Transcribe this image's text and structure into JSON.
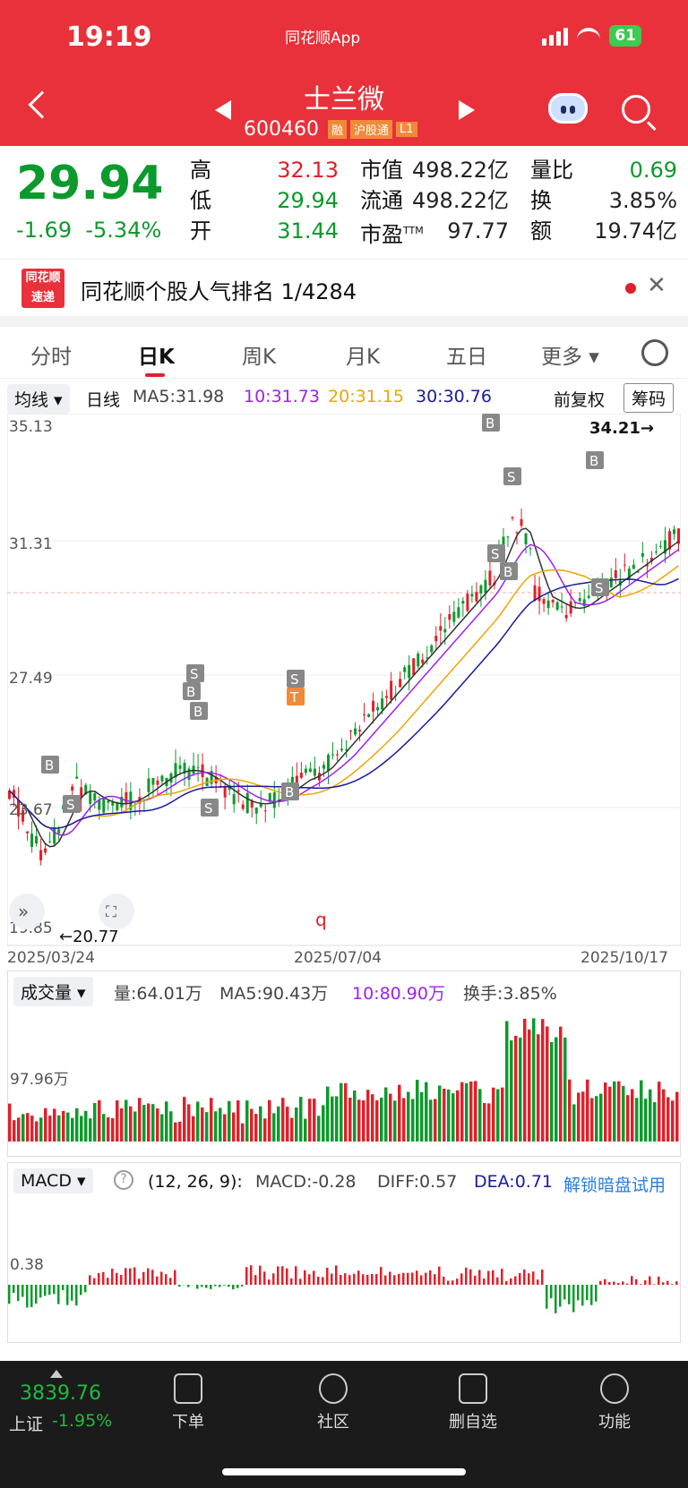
{
  "status": {
    "time": "19:19",
    "app": "同花顺App",
    "battery": "61"
  },
  "header": {
    "stock_name": "士兰微",
    "code": "600460",
    "tags": [
      "融",
      "沪股通",
      "L1"
    ]
  },
  "quote": {
    "price": "29.94",
    "change": "-1.69",
    "change_pct": "-5.34%",
    "high_label": "高",
    "high": "32.13",
    "low_label": "低",
    "low": "29.94",
    "open_label": "开",
    "open": "31.44",
    "mcap_label": "市值",
    "mcap": "498.22亿",
    "float_label": "流通",
    "float": "498.22亿",
    "pe_label": "市盈",
    "pe_sup": "TTM",
    "pe": "97.77",
    "vr_label": "量比",
    "vr": "0.69",
    "turn_label": "换",
    "turn": "3.85%",
    "amt_label": "额",
    "amt": "19.74亿"
  },
  "notice": {
    "logo_top": "同花顺",
    "logo_bottom": "速递",
    "text": "同花顺个股人气排名 1/4284"
  },
  "tabs": [
    "分时",
    "日K",
    "周K",
    "月K",
    "五日",
    "更多"
  ],
  "ma_bar": {
    "indicator": "均线",
    "period": "日线",
    "ma5": "MA5:31.98",
    "ma10": "10:31.73",
    "ma20": "20:31.15",
    "ma30": "30:30.76",
    "adjust": "前复权",
    "chips": "筹码"
  },
  "kline": {
    "y_labels": [
      "35.13",
      "31.31",
      "27.49",
      "23.67",
      "19.85"
    ],
    "high_marker": "34.21→",
    "low_marker": "←20.77",
    "dates": [
      "2025/03/24",
      "2025/07/04",
      "2025/10/17"
    ],
    "flags": [
      "B",
      "S",
      "T",
      "q"
    ]
  },
  "volume": {
    "indicator": "成交量",
    "vol": "量:64.01万",
    "ma5": "MA5:90.43万",
    "ma10": "10:80.90万",
    "turnover": "换手:3.85%",
    "y_label": "97.96万"
  },
  "macd": {
    "indicator": "MACD",
    "params": "(12, 26, 9):",
    "macd": "MACD:-0.28",
    "diff": "DIFF:0.57",
    "dea": "DEA:0.71",
    "unlock": "解锁暗盘试用",
    "y_label": "0.38"
  },
  "bottom": {
    "index_val": "3839.76",
    "index_name": "上证",
    "index_chg": "-1.95%",
    "nav": [
      "下单",
      "社区",
      "删自选",
      "功能"
    ]
  },
  "colors": {
    "up": "#e0202a",
    "down": "#0b9a2b",
    "ma5": "#333333",
    "ma10": "#a020f0",
    "ma20": "#f0a500",
    "ma30": "#1a1aa0"
  }
}
